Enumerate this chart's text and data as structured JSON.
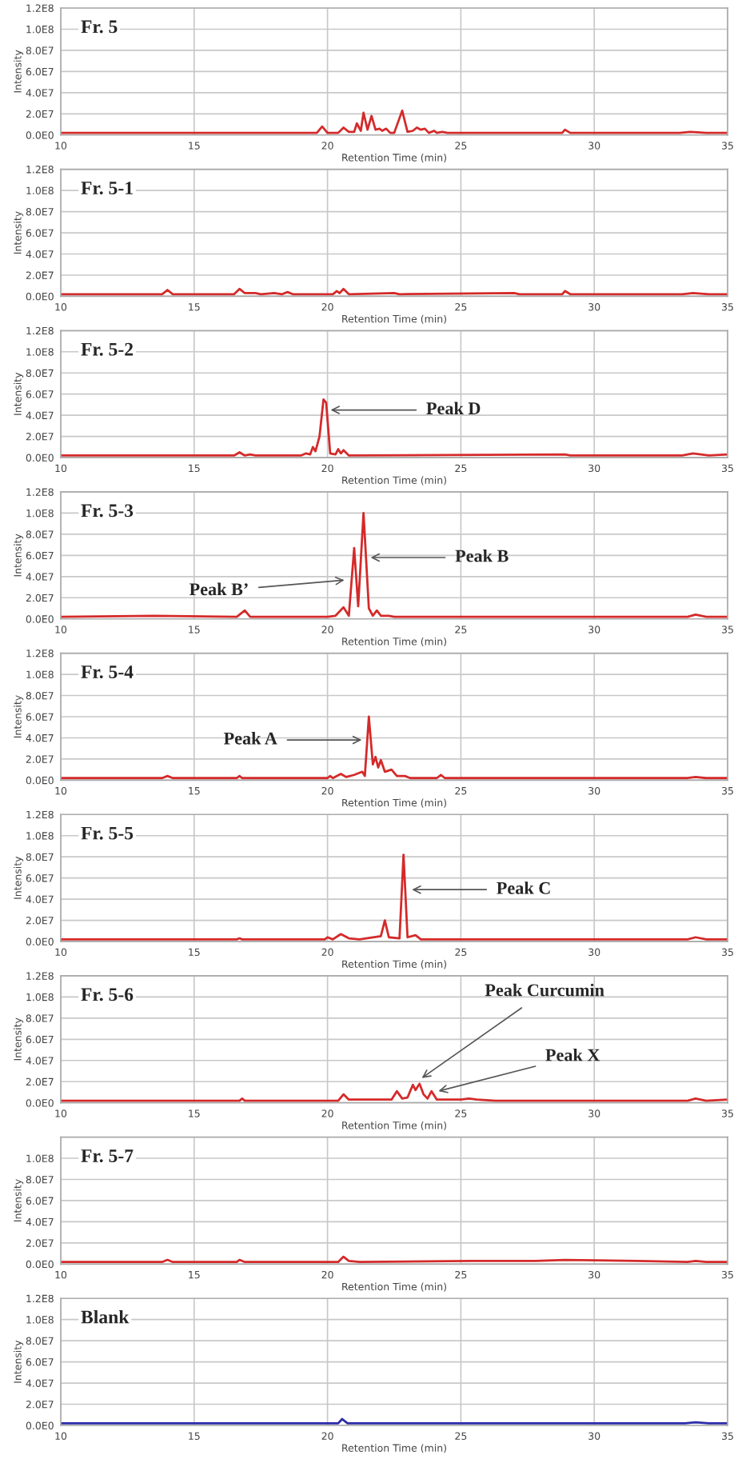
{
  "chart_data": [
    {
      "type": "line",
      "title": "Fr. 5",
      "xlabel": "Retention Time (min)",
      "ylabel": "Intensity",
      "xlim": [
        10,
        35
      ],
      "ylim": [
        0,
        120000000.0
      ],
      "xticks": [
        10,
        15,
        20,
        25,
        30,
        35
      ],
      "yticks": [
        {
          "value": 0,
          "label": "0.0E0"
        },
        {
          "value": 20000000.0,
          "label": "2.0E7"
        },
        {
          "value": 40000000.0,
          "label": "4.0E7"
        },
        {
          "value": 60000000.0,
          "label": "6.0E7"
        },
        {
          "value": 80000000.0,
          "label": "8.0E7"
        },
        {
          "value": 100000000.0,
          "label": "1.0E8"
        },
        {
          "value": 120000000.0,
          "label": "1.2E8"
        }
      ],
      "grid": true,
      "legend": false,
      "series": [
        {
          "color": "#d42a2a",
          "x": [
            10,
            14,
            19.6,
            19.8,
            20.0,
            20.4,
            20.6,
            20.8,
            21.0,
            21.1,
            21.25,
            21.35,
            21.5,
            21.65,
            21.8,
            21.95,
            22.05,
            22.2,
            22.35,
            22.5,
            22.8,
            23.0,
            23.2,
            23.35,
            23.5,
            23.65,
            23.8,
            24.0,
            24.1,
            24.3,
            24.5,
            27,
            28.8,
            28.9,
            29.1,
            33.2,
            33.6,
            34.2,
            35
          ],
          "values": [
            2000000.0,
            2000000.0,
            2000000.0,
            8000000.0,
            2000000.0,
            2000000.0,
            7000000.0,
            3000000.0,
            3000000.0,
            11000000.0,
            4000000.0,
            21000000.0,
            5000000.0,
            18000000.0,
            5000000.0,
            6000000.0,
            4000000.0,
            6000000.0,
            2000000.0,
            2000000.0,
            23000000.0,
            3000000.0,
            4000000.0,
            7000000.0,
            5000000.0,
            6000000.0,
            2000000.0,
            4000000.0,
            2000000.0,
            3000000.0,
            2000000.0,
            2000000.0,
            2000000.0,
            5000000.0,
            2000000.0,
            2000000.0,
            3000000.0,
            2000000.0,
            2000000.0
          ]
        }
      ]
    },
    {
      "type": "line",
      "title": "Fr. 5-1",
      "xlabel": "Retention Time (min)",
      "ylabel": "Intensity",
      "xlim": [
        10,
        35
      ],
      "ylim": [
        0,
        120000000.0
      ],
      "xticks": [
        10,
        15,
        20,
        25,
        30,
        35
      ],
      "yticks": [
        {
          "value": 0,
          "label": "0.0E0"
        },
        {
          "value": 20000000.0,
          "label": "2.0E7"
        },
        {
          "value": 40000000.0,
          "label": "4.0E7"
        },
        {
          "value": 60000000.0,
          "label": "6.0E7"
        },
        {
          "value": 80000000.0,
          "label": "8.0E7"
        },
        {
          "value": 100000000.0,
          "label": "1.0E8"
        },
        {
          "value": 120000000.0,
          "label": "1.2E8"
        }
      ],
      "grid": true,
      "legend": false,
      "series": [
        {
          "color": "#d42a2a",
          "x": [
            10,
            13.8,
            14.0,
            14.2,
            16.5,
            16.7,
            16.9,
            17.3,
            17.5,
            18.0,
            18.3,
            18.5,
            18.7,
            20.2,
            20.35,
            20.45,
            20.6,
            20.8,
            22.5,
            22.7,
            27,
            27.2,
            28.8,
            28.9,
            29.1,
            33.3,
            33.7,
            34.3,
            35
          ],
          "values": [
            2000000.0,
            2000000.0,
            6000000.0,
            2000000.0,
            2000000.0,
            7000000.0,
            3000000.0,
            3000000.0,
            2000000.0,
            3000000.0,
            2000000.0,
            4000000.0,
            2000000.0,
            2000000.0,
            5000000.0,
            3000000.0,
            7000000.0,
            2000000.0,
            3000000.0,
            2000000.0,
            3000000.0,
            2000000.0,
            2000000.0,
            5000000.0,
            2000000.0,
            2000000.0,
            3000000.0,
            2000000.0,
            2000000.0
          ]
        }
      ]
    },
    {
      "type": "line",
      "title": "Fr. 5-2",
      "xlabel": "Retention Time (min)",
      "ylabel": "Intensity",
      "xlim": [
        10,
        35
      ],
      "ylim": [
        0,
        120000000.0
      ],
      "xticks": [
        10,
        15,
        20,
        25,
        30,
        35
      ],
      "yticks": [
        {
          "value": 0,
          "label": "0.0E0"
        },
        {
          "value": 20000000.0,
          "label": "2.0E7"
        },
        {
          "value": 40000000.0,
          "label": "4.0E7"
        },
        {
          "value": 60000000.0,
          "label": "6.0E7"
        },
        {
          "value": 80000000.0,
          "label": "8.0E7"
        },
        {
          "value": 100000000.0,
          "label": "1.0E8"
        },
        {
          "value": 120000000.0,
          "label": "1.2E8"
        }
      ],
      "grid": true,
      "legend": false,
      "annotations": [
        {
          "text": "Peak D",
          "x": 19.95,
          "y": 45000000.0
        }
      ],
      "series": [
        {
          "color": "#d42a2a",
          "x": [
            10,
            16.5,
            16.7,
            16.9,
            17.1,
            17.3,
            19.0,
            19.2,
            19.35,
            19.45,
            19.55,
            19.7,
            19.85,
            19.95,
            20.1,
            20.3,
            20.4,
            20.5,
            20.6,
            20.8,
            28.9,
            29.1,
            33.3,
            33.7,
            34.3,
            35
          ],
          "values": [
            2000000.0,
            2000000.0,
            5000000.0,
            2000000.0,
            3000000.0,
            2000000.0,
            2000000.0,
            4000000.0,
            3000000.0,
            10000000.0,
            6000000.0,
            20000000.0,
            55000000.0,
            52000000.0,
            4000000.0,
            3000000.0,
            8000000.0,
            4000000.0,
            7000000.0,
            2000000.0,
            3000000.0,
            2000000.0,
            2000000.0,
            4000000.0,
            2000000.0,
            3000000.0
          ]
        }
      ]
    },
    {
      "type": "line",
      "title": "Fr. 5-3",
      "xlabel": "Retention Time (min)",
      "ylabel": "Intensity",
      "xlim": [
        10,
        35
      ],
      "ylim": [
        0,
        120000000.0
      ],
      "xticks": [
        10,
        15,
        20,
        25,
        30,
        35
      ],
      "yticks": [
        {
          "value": 0,
          "label": "0.0E0"
        },
        {
          "value": 20000000.0,
          "label": "2.0E7"
        },
        {
          "value": 40000000.0,
          "label": "4.0E7"
        },
        {
          "value": 60000000.0,
          "label": "6.0E7"
        },
        {
          "value": 80000000.0,
          "label": "8.0E7"
        },
        {
          "value": 100000000.0,
          "label": "1.0E8"
        },
        {
          "value": 120000000.0,
          "label": "1.2E8"
        }
      ],
      "grid": true,
      "legend": false,
      "annotations": [
        {
          "text": "Peak B",
          "x": 21.45,
          "y": 58000000.0
        },
        {
          "text": "Peak B’",
          "x": 20.8,
          "y": 37000000.0
        }
      ],
      "series": [
        {
          "color": "#d42a2a",
          "x": [
            10,
            13.5,
            16.6,
            16.9,
            17.1,
            20.0,
            20.3,
            20.6,
            20.8,
            21.0,
            21.15,
            21.35,
            21.55,
            21.7,
            21.85,
            22.0,
            22.3,
            22.5,
            33.5,
            33.8,
            34.2,
            35
          ],
          "values": [
            2000000.0,
            3000000.0,
            2000000.0,
            8000000.0,
            2000000.0,
            2000000.0,
            3000000.0,
            11000000.0,
            3000000.0,
            67000000.0,
            12000000.0,
            100000000.0,
            10000000.0,
            3000000.0,
            8000000.0,
            3000000.0,
            3000000.0,
            2000000.0,
            2000000.0,
            4000000.0,
            2000000.0,
            2000000.0
          ]
        }
      ]
    },
    {
      "type": "line",
      "title": "Fr. 5-4",
      "xlabel": "Retention Time (min)",
      "ylabel": "Intensity",
      "xlim": [
        10,
        35
      ],
      "ylim": [
        0,
        120000000.0
      ],
      "xticks": [
        10,
        15,
        20,
        25,
        30,
        35
      ],
      "yticks": [
        {
          "value": 0,
          "label": "0.0E0"
        },
        {
          "value": 20000000.0,
          "label": "2.0E7"
        },
        {
          "value": 40000000.0,
          "label": "4.0E7"
        },
        {
          "value": 60000000.0,
          "label": "6.0E7"
        },
        {
          "value": 80000000.0,
          "label": "8.0E7"
        },
        {
          "value": 100000000.0,
          "label": "1.0E8"
        },
        {
          "value": 120000000.0,
          "label": "1.2E8"
        }
      ],
      "grid": true,
      "legend": false,
      "annotations": [
        {
          "text": "Peak A",
          "x": 21.45,
          "y": 38000000.0
        }
      ],
      "series": [
        {
          "color": "#d42a2a",
          "x": [
            10,
            13.8,
            14.0,
            14.2,
            16.6,
            16.7,
            16.8,
            20.0,
            20.1,
            20.2,
            20.5,
            20.7,
            21.0,
            21.3,
            21.4,
            21.55,
            21.7,
            21.8,
            21.9,
            22.0,
            22.15,
            22.4,
            22.6,
            22.9,
            23.1,
            24.1,
            24.25,
            24.4,
            33.5,
            33.8,
            34.2,
            35
          ],
          "values": [
            2000000.0,
            2000000.0,
            4000000.0,
            2000000.0,
            2000000.0,
            4000000.0,
            2000000.0,
            2000000.0,
            4000000.0,
            2000000.0,
            6000000.0,
            3000000.0,
            5000000.0,
            8000000.0,
            4000000.0,
            60000000.0,
            15000000.0,
            22000000.0,
            12000000.0,
            19000000.0,
            8000000.0,
            10000000.0,
            4000000.0,
            4000000.0,
            2000000.0,
            2000000.0,
            5000000.0,
            2000000.0,
            2000000.0,
            3000000.0,
            2000000.0,
            2000000.0
          ]
        }
      ]
    },
    {
      "type": "line",
      "title": "Fr. 5-5",
      "xlabel": "Retention Time (min)",
      "ylabel": "Intensity",
      "xlim": [
        10,
        35
      ],
      "ylim": [
        0,
        120000000.0
      ],
      "xticks": [
        10,
        15,
        20,
        25,
        30,
        35
      ],
      "yticks": [
        {
          "value": 0,
          "label": "0.0E0"
        },
        {
          "value": 20000000.0,
          "label": "2.0E7"
        },
        {
          "value": 40000000.0,
          "label": "4.0E7"
        },
        {
          "value": 60000000.0,
          "label": "6.0E7"
        },
        {
          "value": 80000000.0,
          "label": "8.0E7"
        },
        {
          "value": 100000000.0,
          "label": "1.0E8"
        },
        {
          "value": 120000000.0,
          "label": "1.2E8"
        }
      ],
      "grid": true,
      "legend": false,
      "annotations": [
        {
          "text": "Peak C",
          "x": 23.0,
          "y": 49000000.0
        }
      ],
      "series": [
        {
          "color": "#d42a2a",
          "x": [
            10,
            16.6,
            16.7,
            16.8,
            19.9,
            20.0,
            20.2,
            20.5,
            20.8,
            21.2,
            22.0,
            22.15,
            22.3,
            22.7,
            22.85,
            23.0,
            23.3,
            23.5,
            33.5,
            33.8,
            34.2,
            35
          ],
          "values": [
            2000000.0,
            2000000.0,
            3000000.0,
            2000000.0,
            2000000.0,
            4000000.0,
            2000000.0,
            7000000.0,
            3000000.0,
            2000000.0,
            5000000.0,
            20000000.0,
            4000000.0,
            3000000.0,
            82000000.0,
            4000000.0,
            6000000.0,
            2000000.0,
            2000000.0,
            4000000.0,
            2000000.0,
            2000000.0
          ]
        }
      ]
    },
    {
      "type": "line",
      "title": "Fr. 5-6",
      "xlabel": "Retention Time (min)",
      "ylabel": "Intensity",
      "xlim": [
        10,
        35
      ],
      "ylim": [
        0,
        120000000.0
      ],
      "xticks": [
        10,
        15,
        20,
        25,
        30,
        35
      ],
      "yticks": [
        {
          "value": 0,
          "label": "0.0E0"
        },
        {
          "value": 20000000.0,
          "label": "2.0E7"
        },
        {
          "value": 40000000.0,
          "label": "4.0E7"
        },
        {
          "value": 60000000.0,
          "label": "6.0E7"
        },
        {
          "value": 80000000.0,
          "label": "8.0E7"
        },
        {
          "value": 100000000.0,
          "label": "1.0E8"
        },
        {
          "value": 120000000.0,
          "label": "1.2E8"
        }
      ],
      "grid": true,
      "legend": false,
      "annotations": [
        {
          "text": "Peak Curcumin",
          "x": 23.4,
          "y": 21000000.0
        },
        {
          "text": "Peak X",
          "x": 24.0,
          "y": 10000000.0
        }
      ],
      "series": [
        {
          "color": "#d42a2a",
          "x": [
            10,
            16.7,
            16.8,
            16.9,
            20.4,
            20.6,
            20.8,
            21.8,
            22.4,
            22.6,
            22.8,
            23.0,
            23.2,
            23.3,
            23.45,
            23.6,
            23.75,
            23.9,
            24.1,
            25.0,
            25.3,
            25.6,
            26.3,
            33.5,
            33.8,
            34.2,
            35
          ],
          "values": [
            2000000.0,
            2000000.0,
            4000000.0,
            2000000.0,
            2000000.0,
            8000000.0,
            3000000.0,
            3000000.0,
            3000000.0,
            11000000.0,
            4000000.0,
            5000000.0,
            17000000.0,
            12000000.0,
            18000000.0,
            8000000.0,
            4000000.0,
            11000000.0,
            3000000.0,
            3000000.0,
            4000000.0,
            3000000.0,
            2000000.0,
            2000000.0,
            4000000.0,
            2000000.0,
            3000000.0
          ]
        }
      ]
    },
    {
      "type": "line",
      "title": "Fr. 5-7",
      "xlabel": "Retention Time (min)",
      "ylabel": "Intensity",
      "xlim": [
        10,
        35
      ],
      "ylim": [
        0,
        120000000.0
      ],
      "xticks": [
        10,
        15,
        20,
        25,
        30,
        35
      ],
      "yticks": [
        {
          "value": 0,
          "label": "0.0E0"
        },
        {
          "value": 20000000.0,
          "label": "2.0E7"
        },
        {
          "value": 40000000.0,
          "label": "4.0E7"
        },
        {
          "value": 60000000.0,
          "label": "6.0E7"
        },
        {
          "value": 80000000.0,
          "label": "8.0E7"
        },
        {
          "value": 100000000.0,
          "label": "1.0E8"
        }
      ],
      "grid": true,
      "legend": false,
      "series": [
        {
          "color": "#d42a2a",
          "x": [
            10,
            13.8,
            14.0,
            14.2,
            16.6,
            16.7,
            16.9,
            20.4,
            20.6,
            20.8,
            21.2,
            25.4,
            27.8,
            28.9,
            31.6,
            33.5,
            33.8,
            34.2,
            35
          ],
          "values": [
            2000000.0,
            2000000.0,
            4000000.0,
            2000000.0,
            2000000.0,
            4000000.0,
            2000000.0,
            2000000.0,
            7000000.0,
            3000000.0,
            2000000.0,
            3000000.0,
            3000000.0,
            4000000.0,
            3000000.0,
            2000000.0,
            3000000.0,
            2000000.0,
            2000000.0
          ]
        }
      ]
    },
    {
      "type": "line",
      "title": "Blank",
      "xlabel": "Retention Time (min)",
      "ylabel": "Intensity",
      "xlim": [
        10,
        35
      ],
      "ylim": [
        0,
        120000000.0
      ],
      "xticks": [
        10,
        15,
        20,
        25,
        30,
        35
      ],
      "yticks": [
        {
          "value": 0,
          "label": "0.0E0"
        },
        {
          "value": 20000000.0,
          "label": "2.0E7"
        },
        {
          "value": 40000000.0,
          "label": "4.0E7"
        },
        {
          "value": 60000000.0,
          "label": "6.0E7"
        },
        {
          "value": 80000000.0,
          "label": "8.0E7"
        },
        {
          "value": 100000000.0,
          "label": "1.0E8"
        },
        {
          "value": 120000000.0,
          "label": "1.2E8"
        }
      ],
      "grid": true,
      "legend": false,
      "series": [
        {
          "color": "#2b2ba8",
          "x": [
            10,
            20.4,
            20.55,
            20.75,
            33.4,
            33.8,
            34.3,
            35
          ],
          "values": [
            2000000.0,
            2000000.0,
            6000000.0,
            2000000.0,
            2000000.0,
            3000000.0,
            2000000.0,
            2000000.0
          ]
        }
      ]
    }
  ]
}
